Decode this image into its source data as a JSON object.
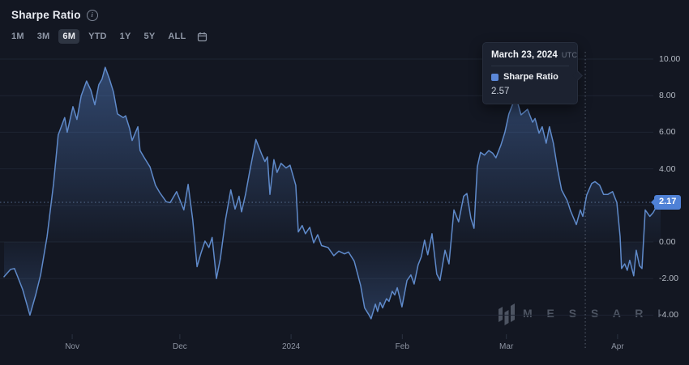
{
  "header": {
    "title": "Sharpe Ratio",
    "info_icon": "i",
    "ranges": [
      "1M",
      "3M",
      "6M",
      "YTD",
      "1Y",
      "5Y",
      "ALL"
    ],
    "selected_range": "6M",
    "calendar_icon": "calendar"
  },
  "tooltip": {
    "date": "March 23, 2024",
    "timezone": "UTC",
    "series_label": "Sharpe Ratio",
    "value": "2.57",
    "swatch_color": "#5b87d8"
  },
  "current_value_badge": "2.17",
  "watermark": {
    "text": "M E S S A R I"
  },
  "colors": {
    "background": "#131722",
    "gridline": "#1e2532",
    "axis_tick": "#2a3240",
    "line": "#5f8aca",
    "area": "#5886d0",
    "dotted_value_line": "#6d8ab2",
    "crosshair": "#8591a4",
    "badge_bg": "#4f81d6",
    "tooltip_bg": "#1c2230",
    "watermark": "#4d5462"
  },
  "chart_data": {
    "type": "area",
    "title": "Sharpe Ratio",
    "series_name": "Sharpe Ratio",
    "selected_period": "6M",
    "x_axis": {
      "start_date": "2023-10-13",
      "end_date": "2024-04-13",
      "unit": "day_offset_from_start",
      "ticks": [
        {
          "day": 19,
          "label": "Nov"
        },
        {
          "day": 49,
          "label": "Dec"
        },
        {
          "day": 80,
          "label": "2024"
        },
        {
          "day": 111,
          "label": "Feb"
        },
        {
          "day": 140,
          "label": "Mar"
        },
        {
          "day": 171,
          "label": "Apr"
        }
      ]
    },
    "y_axis": {
      "side": "right",
      "grid": true,
      "ticks": [
        {
          "v": 10,
          "label": "10.00"
        },
        {
          "v": 8,
          "label": "8.00"
        },
        {
          "v": 6,
          "label": "6.00"
        },
        {
          "v": 4,
          "label": "4.00"
        },
        {
          "v": 2,
          "label": ""
        },
        {
          "v": 0,
          "label": "0.00"
        },
        {
          "v": -2,
          "label": "-2.00"
        },
        {
          "v": -4,
          "label": "-4.00"
        }
      ],
      "visible_range": [
        -5.8,
        10.6
      ]
    },
    "crosshair": {
      "day": 162,
      "date": "March 23, 2024",
      "value": 2.57
    },
    "last_value": 2.17,
    "baseline": 0,
    "points": [
      [
        0,
        -1.9
      ],
      [
        1.8,
        -1.5
      ],
      [
        2.9,
        -1.45
      ],
      [
        3.8,
        -1.9
      ],
      [
        5.2,
        -2.6
      ],
      [
        7.2,
        -4
      ],
      [
        8.8,
        -2.9
      ],
      [
        10.2,
        -1.8
      ],
      [
        12,
        0.3
      ],
      [
        13.8,
        3.2
      ],
      [
        15.1,
        5.85
      ],
      [
        16.9,
        6.8
      ],
      [
        17.6,
        6
      ],
      [
        19.2,
        7.4
      ],
      [
        20.3,
        6.7
      ],
      [
        21.5,
        8
      ],
      [
        23,
        8.8
      ],
      [
        24.2,
        8.3
      ],
      [
        25.3,
        7.5
      ],
      [
        26.4,
        8.6
      ],
      [
        27.3,
        8.9
      ],
      [
        28.2,
        9.55
      ],
      [
        29.4,
        8.9
      ],
      [
        30.5,
        8.2
      ],
      [
        31.6,
        7
      ],
      [
        33.2,
        6.8
      ],
      [
        33.9,
        6.9
      ],
      [
        35,
        6.2
      ],
      [
        35.7,
        5.55
      ],
      [
        37.3,
        6.3
      ],
      [
        37.9,
        5
      ],
      [
        39.1,
        4.6
      ],
      [
        40.7,
        4.1
      ],
      [
        42.2,
        3.1
      ],
      [
        43.4,
        2.7
      ],
      [
        45.2,
        2.2
      ],
      [
        46.3,
        2.15
      ],
      [
        48.1,
        2.75
      ],
      [
        50.1,
        1.75
      ],
      [
        51.3,
        3.15
      ],
      [
        52.6,
        1.2
      ],
      [
        53.8,
        -1.35
      ],
      [
        54.9,
        -0.6
      ],
      [
        56,
        0.05
      ],
      [
        57.1,
        -0.3
      ],
      [
        58,
        0.25
      ],
      [
        59.2,
        -2
      ],
      [
        60.3,
        -0.9
      ],
      [
        61.7,
        1.2
      ],
      [
        63.2,
        2.85
      ],
      [
        64.4,
        1.8
      ],
      [
        65.5,
        2.5
      ],
      [
        66.2,
        1.65
      ],
      [
        67.3,
        2.6
      ],
      [
        68.4,
        3.8
      ],
      [
        70.2,
        5.6
      ],
      [
        71.8,
        4.8
      ],
      [
        72.7,
        4.4
      ],
      [
        73.4,
        4.65
      ],
      [
        74.1,
        2.6
      ],
      [
        75.2,
        4.5
      ],
      [
        76.1,
        3.8
      ],
      [
        77.2,
        4.3
      ],
      [
        78.6,
        4.05
      ],
      [
        79.7,
        4.2
      ],
      [
        81.3,
        3.1
      ],
      [
        82,
        0.55
      ],
      [
        83.1,
        0.9
      ],
      [
        84,
        0.45
      ],
      [
        85.2,
        0.8
      ],
      [
        86.3,
        -0.05
      ],
      [
        87.4,
        0.4
      ],
      [
        88.5,
        -0.2
      ],
      [
        90.3,
        -0.3
      ],
      [
        91.9,
        -0.75
      ],
      [
        93.3,
        -0.5
      ],
      [
        94.9,
        -0.65
      ],
      [
        96,
        -0.55
      ],
      [
        97.6,
        -1.05
      ],
      [
        99.4,
        -2.4
      ],
      [
        100.5,
        -3.6
      ],
      [
        101.6,
        -3.95
      ],
      [
        102.3,
        -4.2
      ],
      [
        103.5,
        -3.4
      ],
      [
        104.1,
        -3.8
      ],
      [
        104.8,
        -3.3
      ],
      [
        105.5,
        -3.6
      ],
      [
        106.6,
        -3.1
      ],
      [
        107.3,
        -3.25
      ],
      [
        108.2,
        -2.7
      ],
      [
        108.9,
        -2.9
      ],
      [
        109.6,
        -2.5
      ],
      [
        110.9,
        -3.55
      ],
      [
        112.3,
        -2.1
      ],
      [
        113.4,
        -1.8
      ],
      [
        114.3,
        -2.3
      ],
      [
        115.4,
        -1.25
      ],
      [
        116.3,
        -0.8
      ],
      [
        117.2,
        0.1
      ],
      [
        118.1,
        -0.7
      ],
      [
        119.3,
        0.45
      ],
      [
        120.6,
        -1.75
      ],
      [
        121.5,
        -2.1
      ],
      [
        122.9,
        -0.45
      ],
      [
        124,
        -1.2
      ],
      [
        125.4,
        1.75
      ],
      [
        126.7,
        1.1
      ],
      [
        128.1,
        2.5
      ],
      [
        129,
        2.65
      ],
      [
        130.1,
        1.3
      ],
      [
        131,
        0.75
      ],
      [
        131.9,
        4.1
      ],
      [
        132.8,
        4.9
      ],
      [
        133.9,
        4.75
      ],
      [
        135.1,
        5
      ],
      [
        136.2,
        4.85
      ],
      [
        137.1,
        4.6
      ],
      [
        138.5,
        5.3
      ],
      [
        139.6,
        6
      ],
      [
        140.7,
        7
      ],
      [
        141.9,
        7.6
      ],
      [
        142.8,
        7.85
      ],
      [
        144.1,
        6.95
      ],
      [
        145.9,
        7.25
      ],
      [
        147.3,
        6.55
      ],
      [
        148,
        6.75
      ],
      [
        149.1,
        5.95
      ],
      [
        150,
        6.3
      ],
      [
        151.1,
        5.4
      ],
      [
        152,
        6.3
      ],
      [
        153.1,
        5.4
      ],
      [
        154.3,
        3.95
      ],
      [
        155.4,
        2.85
      ],
      [
        157,
        2.25
      ],
      [
        157.9,
        1.7
      ],
      [
        159.5,
        0.95
      ],
      [
        160.6,
        1.75
      ],
      [
        161.3,
        1.4
      ],
      [
        162.4,
        2.57
      ],
      [
        163.8,
        3.2
      ],
      [
        164.7,
        3.3
      ],
      [
        166,
        3.1
      ],
      [
        167.1,
        2.6
      ],
      [
        168.3,
        2.6
      ],
      [
        169.6,
        2.75
      ],
      [
        170.8,
        2.15
      ],
      [
        171.7,
        0.3
      ],
      [
        172.1,
        -1.45
      ],
      [
        173,
        -1.2
      ],
      [
        173.7,
        -1.55
      ],
      [
        174.4,
        -1
      ],
      [
        175.5,
        -1.85
      ],
      [
        176.2,
        -0.45
      ],
      [
        177.1,
        -1.3
      ],
      [
        177.8,
        -1.45
      ],
      [
        178.7,
        1.75
      ],
      [
        180,
        1.4
      ],
      [
        180.9,
        1.6
      ],
      [
        182.3,
        2.1
      ],
      [
        183,
        2.17
      ]
    ]
  }
}
